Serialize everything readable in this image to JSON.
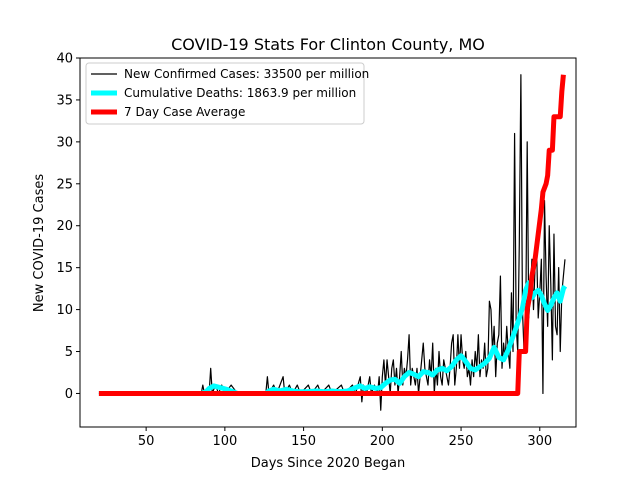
{
  "chart_data": {
    "type": "line",
    "title": "COVID-19 Stats For Clinton County, MO",
    "xlabel": "Days Since 2020 Began",
    "ylabel": "New COVID-19 Cases",
    "xlim": [
      8,
      323
    ],
    "ylim": [
      -4,
      40
    ],
    "xticks": [
      50,
      100,
      150,
      200,
      250,
      300
    ],
    "yticks": [
      0,
      5,
      10,
      15,
      20,
      25,
      30,
      35,
      40
    ],
    "grid": false,
    "legend_position": "top-left",
    "series": [
      {
        "name": "New Confirmed Cases: 33500 per million",
        "color": "#000000",
        "points": [
          [
            20,
            0
          ],
          [
            85,
            0
          ],
          [
            86,
            1
          ],
          [
            87,
            0
          ],
          [
            90,
            0
          ],
          [
            91,
            3
          ],
          [
            92,
            0
          ],
          [
            94,
            1
          ],
          [
            96,
            0
          ],
          [
            98,
            1
          ],
          [
            100,
            0
          ],
          [
            104,
            1
          ],
          [
            108,
            0
          ],
          [
            126,
            0
          ],
          [
            127,
            2
          ],
          [
            128,
            0
          ],
          [
            131,
            1
          ],
          [
            133,
            0
          ],
          [
            137,
            2
          ],
          [
            138,
            0
          ],
          [
            141,
            1
          ],
          [
            143,
            0
          ],
          [
            146,
            1
          ],
          [
            148,
            0
          ],
          [
            153,
            1
          ],
          [
            155,
            0
          ],
          [
            159,
            1
          ],
          [
            161,
            0
          ],
          [
            166,
            1
          ],
          [
            168,
            0
          ],
          [
            174,
            1
          ],
          [
            176,
            0
          ],
          [
            181,
            1
          ],
          [
            183,
            0
          ],
          [
            186,
            2
          ],
          [
            187,
            -1
          ],
          [
            188,
            1
          ],
          [
            190,
            0
          ],
          [
            192,
            2
          ],
          [
            193,
            0
          ],
          [
            195,
            1
          ],
          [
            197,
            0
          ],
          [
            198,
            2
          ],
          [
            199,
            -2
          ],
          [
            200,
            2
          ],
          [
            201,
            4
          ],
          [
            202,
            1
          ],
          [
            203,
            4
          ],
          [
            204,
            2
          ],
          [
            205,
            0
          ],
          [
            206,
            3
          ],
          [
            207,
            4
          ],
          [
            208,
            1
          ],
          [
            209,
            3
          ],
          [
            210,
            0
          ],
          [
            211,
            2
          ],
          [
            212,
            5
          ],
          [
            213,
            1
          ],
          [
            214,
            3
          ],
          [
            215,
            2
          ],
          [
            216,
            4
          ],
          [
            217,
            7
          ],
          [
            218,
            1
          ],
          [
            219,
            3
          ],
          [
            220,
            2
          ],
          [
            221,
            1
          ],
          [
            222,
            3
          ],
          [
            223,
            0
          ],
          [
            224,
            2
          ],
          [
            225,
            4
          ],
          [
            226,
            6
          ],
          [
            227,
            3
          ],
          [
            228,
            2
          ],
          [
            229,
            1
          ],
          [
            230,
            4
          ],
          [
            231,
            2
          ],
          [
            232,
            6
          ],
          [
            233,
            0
          ],
          [
            234,
            3
          ],
          [
            235,
            1
          ],
          [
            236,
            5
          ],
          [
            237,
            2
          ],
          [
            238,
            1
          ],
          [
            239,
            4
          ],
          [
            240,
            3
          ],
          [
            241,
            2
          ],
          [
            242,
            1
          ],
          [
            243,
            3
          ],
          [
            244,
            6
          ],
          [
            245,
            7
          ],
          [
            246,
            1
          ],
          [
            247,
            3
          ],
          [
            248,
            7
          ],
          [
            249,
            3
          ],
          [
            250,
            7
          ],
          [
            251,
            4
          ],
          [
            252,
            3
          ],
          [
            253,
            5
          ],
          [
            254,
            2
          ],
          [
            255,
            3
          ],
          [
            256,
            1
          ],
          [
            257,
            4
          ],
          [
            258,
            2
          ],
          [
            259,
            5
          ],
          [
            260,
            3
          ],
          [
            261,
            7
          ],
          [
            262,
            2
          ],
          [
            263,
            4
          ],
          [
            264,
            3
          ],
          [
            265,
            6
          ],
          [
            266,
            2
          ],
          [
            267,
            3
          ],
          [
            268,
            11
          ],
          [
            269,
            10
          ],
          [
            270,
            5
          ],
          [
            271,
            8
          ],
          [
            272,
            2
          ],
          [
            273,
            6
          ],
          [
            274,
            7
          ],
          [
            275,
            14
          ],
          [
            276,
            3
          ],
          [
            277,
            6
          ],
          [
            278,
            4
          ],
          [
            279,
            8
          ],
          [
            280,
            5
          ],
          [
            281,
            3
          ],
          [
            282,
            12
          ],
          [
            283,
            5
          ],
          [
            284,
            31
          ],
          [
            285,
            8
          ],
          [
            286,
            5
          ],
          [
            287,
            18
          ],
          [
            288,
            38
          ],
          [
            289,
            10
          ],
          [
            290,
            5
          ],
          [
            291,
            7
          ],
          [
            292,
            30
          ],
          [
            293,
            9
          ],
          [
            294,
            12
          ],
          [
            295,
            16
          ],
          [
            296,
            10
          ],
          [
            297,
            15
          ],
          [
            298,
            17
          ],
          [
            299,
            9
          ],
          [
            300,
            12
          ],
          [
            301,
            16
          ],
          [
            302,
            0
          ],
          [
            303,
            23
          ],
          [
            304,
            14
          ],
          [
            305,
            8
          ],
          [
            306,
            20
          ],
          [
            307,
            13
          ],
          [
            308,
            4
          ],
          [
            309,
            19
          ],
          [
            310,
            8
          ],
          [
            311,
            7
          ],
          [
            312,
            15
          ],
          [
            313,
            5
          ],
          [
            314,
            12
          ],
          [
            315,
            14
          ],
          [
            316,
            16
          ]
        ]
      },
      {
        "name": "Cumulative Deaths: 1863.9 per million",
        "color": "#00ffff",
        "points": [
          [
            20,
            0
          ],
          [
            85,
            0
          ],
          [
            88,
            0.2
          ],
          [
            90,
            0.6
          ],
          [
            93,
            0.9
          ],
          [
            97,
            0.7
          ],
          [
            101,
            0.5
          ],
          [
            104,
            0.3
          ],
          [
            108,
            0
          ],
          [
            126,
            0
          ],
          [
            128,
            0.3
          ],
          [
            131,
            0.5
          ],
          [
            135,
            0.3
          ],
          [
            139,
            0.5
          ],
          [
            143,
            0.3
          ],
          [
            147,
            0.2
          ],
          [
            152,
            0.2
          ],
          [
            158,
            0.3
          ],
          [
            163,
            0.2
          ],
          [
            168,
            0.3
          ],
          [
            173,
            0.2
          ],
          [
            178,
            0.3
          ],
          [
            183,
            0.7
          ],
          [
            186,
            0.9
          ],
          [
            189,
            0.6
          ],
          [
            192,
            0.8
          ],
          [
            196,
            0.6
          ],
          [
            199,
            0.7
          ],
          [
            202,
            1.2
          ],
          [
            205,
            1.6
          ],
          [
            208,
            1.7
          ],
          [
            211,
            1.2
          ],
          [
            214,
            2.0
          ],
          [
            217,
            2.5
          ],
          [
            220,
            2.3
          ],
          [
            223,
            2.0
          ],
          [
            226,
            2.6
          ],
          [
            229,
            2.5
          ],
          [
            232,
            2.2
          ],
          [
            235,
            2.8
          ],
          [
            238,
            3.0
          ],
          [
            241,
            2.7
          ],
          [
            244,
            3.2
          ],
          [
            247,
            4.0
          ],
          [
            250,
            4.5
          ],
          [
            253,
            3.8
          ],
          [
            256,
            3.0
          ],
          [
            259,
            2.8
          ],
          [
            262,
            3.2
          ],
          [
            265,
            3.6
          ],
          [
            268,
            4.2
          ],
          [
            271,
            5.5
          ],
          [
            274,
            4.3
          ],
          [
            277,
            4.0
          ],
          [
            280,
            5.2
          ],
          [
            283,
            6.8
          ],
          [
            286,
            8.4
          ],
          [
            289,
            10.2
          ],
          [
            291,
            12.3
          ],
          [
            293,
            13.2
          ],
          [
            295,
            11.4
          ],
          [
            297,
            12.0
          ],
          [
            299,
            12.3
          ],
          [
            301,
            11.7
          ],
          [
            303,
            10.7
          ],
          [
            305,
            9.9
          ],
          [
            307,
            10.5
          ],
          [
            309,
            11.4
          ],
          [
            311,
            12.0
          ],
          [
            313,
            11.0
          ],
          [
            315,
            12.5
          ],
          [
            316,
            12.8
          ]
        ]
      },
      {
        "name": "7 Day Case Average",
        "color": "#ff0000",
        "points": [
          [
            20,
            0
          ],
          [
            286,
            0
          ],
          [
            287,
            5
          ],
          [
            291,
            5
          ],
          [
            292,
            10
          ],
          [
            294,
            12
          ],
          [
            295,
            14
          ],
          [
            297,
            16
          ],
          [
            299,
            19
          ],
          [
            301,
            22
          ],
          [
            302,
            24
          ],
          [
            304,
            25
          ],
          [
            305,
            26
          ],
          [
            306,
            29
          ],
          [
            308,
            29
          ],
          [
            309,
            33
          ],
          [
            313,
            33
          ],
          [
            314,
            36
          ],
          [
            315,
            38
          ]
        ]
      }
    ]
  }
}
